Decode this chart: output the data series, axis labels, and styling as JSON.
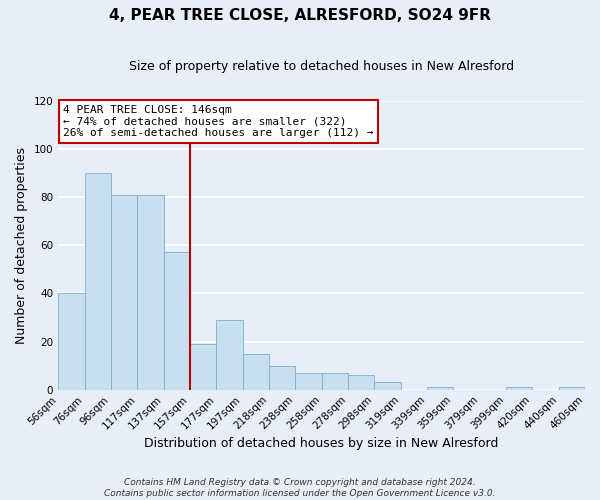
{
  "title": "4, PEAR TREE CLOSE, ALRESFORD, SO24 9FR",
  "subtitle": "Size of property relative to detached houses in New Alresford",
  "xlabel": "Distribution of detached houses by size in New Alresford",
  "ylabel": "Number of detached properties",
  "categories": [
    "56sqm",
    "76sqm",
    "96sqm",
    "117sqm",
    "137sqm",
    "157sqm",
    "177sqm",
    "197sqm",
    "218sqm",
    "238sqm",
    "258sqm",
    "278sqm",
    "298sqm",
    "319sqm",
    "339sqm",
    "359sqm",
    "379sqm",
    "399sqm",
    "420sqm",
    "440sqm",
    "460sqm"
  ],
  "bar_heights": [
    40,
    90,
    81,
    81,
    57,
    19,
    29,
    15,
    10,
    7,
    7,
    6,
    3,
    0,
    1,
    0,
    0,
    1,
    0,
    1
  ],
  "bar_color": "#c8dff0",
  "bar_edge_color": "#7ab0cc",
  "vline_position": 4.5,
  "vline_color": "#bb0000",
  "ylim": [
    0,
    120
  ],
  "yticks": [
    0,
    20,
    40,
    60,
    80,
    100,
    120
  ],
  "annotation_title": "4 PEAR TREE CLOSE: 146sqm",
  "annotation_line1": "← 74% of detached houses are smaller (322)",
  "annotation_line2": "26% of semi-detached houses are larger (112) →",
  "annotation_box_facecolor": "#ffffff",
  "annotation_box_edgecolor": "#bb0000",
  "footer1": "Contains HM Land Registry data © Crown copyright and database right 2024.",
  "footer2": "Contains public sector information licensed under the Open Government Licence v3.0.",
  "background_color": "#e8eef8",
  "grid_color": "#ffffff",
  "title_fontsize": 11,
  "subtitle_fontsize": 9,
  "axis_label_fontsize": 9,
  "tick_fontsize": 7.5,
  "annotation_fontsize": 8,
  "footer_fontsize": 6.5
}
